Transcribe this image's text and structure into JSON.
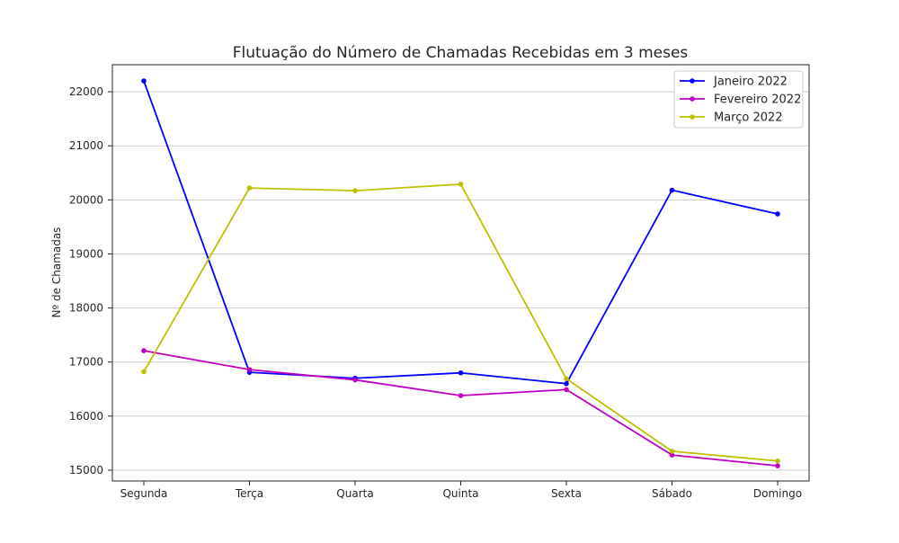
{
  "chart_data": {
    "type": "line",
    "title": "Flutuação do Número de Chamadas Recebidas em 3 meses",
    "xlabel": "",
    "ylabel": "Nº de Chamadas",
    "categories": [
      "Segunda",
      "Terça",
      "Quarta",
      "Quinta",
      "Sexta",
      "Sábado",
      "Domingo"
    ],
    "ylim": [
      14800,
      22500
    ],
    "yticks": [
      15000,
      16000,
      17000,
      18000,
      19000,
      20000,
      21000,
      22000
    ],
    "grid": "horizontal",
    "legend_position": "top-right",
    "series": [
      {
        "name": "Janeiro 2022",
        "color": "#0000ff",
        "values": [
          22200,
          16810,
          16700,
          16800,
          16600,
          20180,
          19740
        ]
      },
      {
        "name": "Fevereiro 2022",
        "color": "#bf00bf",
        "values": [
          17210,
          16860,
          16670,
          16380,
          16490,
          15280,
          15080
        ]
      },
      {
        "name": "Março 2022",
        "color": "#bfbf00",
        "values": [
          16820,
          20220,
          20170,
          20290,
          16690,
          15350,
          15170
        ]
      }
    ]
  }
}
